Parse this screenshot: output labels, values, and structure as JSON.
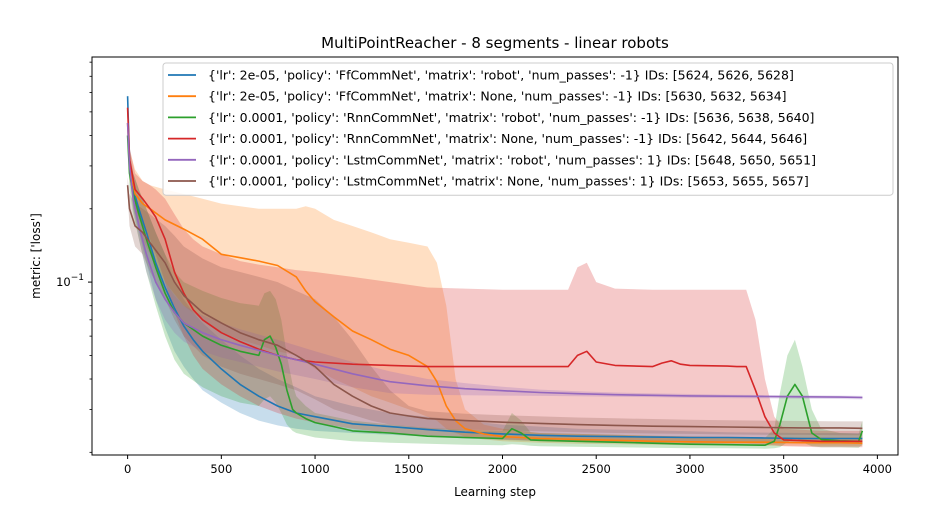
{
  "chart_data": {
    "type": "line",
    "title": "MultiPointReacher - 8 segments - linear robots",
    "xlabel": "Learning step",
    "ylabel": "metric: ['loss']",
    "yscale": "log",
    "xlim": [
      -190,
      4110
    ],
    "ylim": [
      0.0195,
      0.84
    ],
    "xticks": [
      0,
      500,
      1000,
      1500,
      2000,
      2500,
      3000,
      3500,
      4000
    ],
    "yticks": [
      {
        "value": 0.1,
        "label": "10^-1"
      }
    ],
    "grid": false,
    "legend_position": "top-right",
    "series": [
      {
        "name": "{'lr': 2e-05, 'policy': 'FfCommNet', 'matrix': 'robot', 'num_passes': -1}  IDs: [5624, 5626, 5628]",
        "color": "#1f77b4",
        "x": [
          0,
          10,
          30,
          60,
          100,
          150,
          200,
          250,
          300,
          350,
          400,
          500,
          600,
          700,
          800,
          900,
          1000,
          1200,
          1400,
          1600,
          1800,
          2000,
          2200,
          2400,
          2600,
          2800,
          3000,
          3200,
          3400,
          3600,
          3800,
          3920
        ],
        "y": [
          0.58,
          0.32,
          0.24,
          0.2,
          0.16,
          0.12,
          0.095,
          0.078,
          0.066,
          0.058,
          0.052,
          0.044,
          0.038,
          0.034,
          0.031,
          0.029,
          0.028,
          0.0262,
          0.0255,
          0.0248,
          0.0242,
          0.0238,
          0.0235,
          0.0233,
          0.0232,
          0.0231,
          0.023,
          0.023,
          0.0229,
          0.0228,
          0.0228,
          0.0228
        ],
        "upper": [
          0.6,
          0.36,
          0.28,
          0.24,
          0.2,
          0.16,
          0.13,
          0.1,
          0.085,
          0.075,
          0.068,
          0.058,
          0.05,
          0.044,
          0.04,
          0.037,
          0.034,
          0.031,
          0.029,
          0.028,
          0.027,
          0.026,
          0.0255,
          0.025,
          0.0248,
          0.0246,
          0.0244,
          0.0242,
          0.0241,
          0.024,
          0.024,
          0.024
        ],
        "lower": [
          0.55,
          0.28,
          0.2,
          0.16,
          0.12,
          0.085,
          0.065,
          0.052,
          0.045,
          0.04,
          0.036,
          0.032,
          0.029,
          0.027,
          0.0258,
          0.025,
          0.0245,
          0.024,
          0.0236,
          0.0232,
          0.0228,
          0.0225,
          0.0222,
          0.0221,
          0.022,
          0.022,
          0.0219,
          0.0219,
          0.0218,
          0.0218,
          0.0218,
          0.0218
        ]
      },
      {
        "name": "{'lr': 2e-05, 'policy': 'FfCommNet', 'matrix': None, 'num_passes': -1}  IDs: [5630, 5632, 5634]",
        "color": "#ff7f0e",
        "x": [
          0,
          10,
          40,
          80,
          120,
          200,
          300,
          400,
          500,
          600,
          700,
          800,
          900,
          950,
          1000,
          1100,
          1200,
          1300,
          1400,
          1500,
          1600,
          1650,
          1700,
          1750,
          1800,
          1900,
          2000,
          2200,
          2400,
          2600,
          2800,
          3000,
          3200,
          3400,
          3600,
          3800,
          3920
        ],
        "y": [
          0.45,
          0.3,
          0.23,
          0.21,
          0.2,
          0.18,
          0.165,
          0.15,
          0.13,
          0.126,
          0.122,
          0.117,
          0.105,
          0.092,
          0.083,
          0.072,
          0.063,
          0.058,
          0.053,
          0.05,
          0.045,
          0.039,
          0.031,
          0.027,
          0.025,
          0.0238,
          0.0232,
          0.0228,
          0.0226,
          0.0224,
          0.0222,
          0.0221,
          0.022,
          0.022,
          0.0219,
          0.0219,
          0.0218
        ],
        "upper": [
          0.5,
          0.35,
          0.29,
          0.26,
          0.25,
          0.24,
          0.23,
          0.22,
          0.21,
          0.205,
          0.2,
          0.2,
          0.2,
          0.205,
          0.2,
          0.18,
          0.17,
          0.16,
          0.15,
          0.145,
          0.14,
          0.12,
          0.08,
          0.04,
          0.03,
          0.026,
          0.025,
          0.024,
          0.0238,
          0.0236,
          0.0234,
          0.0233,
          0.0232,
          0.0231,
          0.023,
          0.023,
          0.023
        ],
        "lower": [
          0.4,
          0.26,
          0.19,
          0.15,
          0.13,
          0.1,
          0.08,
          0.07,
          0.062,
          0.058,
          0.055,
          0.052,
          0.05,
          0.047,
          0.044,
          0.04,
          0.037,
          0.034,
          0.032,
          0.03,
          0.028,
          0.027,
          0.025,
          0.024,
          0.0232,
          0.0226,
          0.0222,
          0.0219,
          0.0217,
          0.0216,
          0.0215,
          0.0214,
          0.0214,
          0.0213,
          0.0213,
          0.0213,
          0.0213
        ]
      },
      {
        "name": "{'lr': 0.0001, 'policy': 'RnnCommNet', 'matrix': 'robot', 'num_passes': -1}  IDs: [5636, 5638, 5640]",
        "color": "#2ca02c",
        "x": [
          0,
          10,
          30,
          60,
          100,
          150,
          200,
          250,
          300,
          400,
          500,
          600,
          700,
          730,
          760,
          790,
          820,
          850,
          880,
          900,
          950,
          1000,
          1100,
          1200,
          1400,
          1600,
          1800,
          2000,
          2050,
          2100,
          2150,
          2200,
          2400,
          2600,
          2800,
          3000,
          3200,
          3400,
          3450,
          3480,
          3520,
          3560,
          3600,
          3650,
          3700,
          3800,
          3900,
          3920
        ],
        "y": [
          0.4,
          0.28,
          0.23,
          0.19,
          0.15,
          0.115,
          0.09,
          0.075,
          0.068,
          0.06,
          0.055,
          0.052,
          0.05,
          0.058,
          0.06,
          0.054,
          0.046,
          0.036,
          0.03,
          0.029,
          0.0275,
          0.0265,
          0.0255,
          0.0245,
          0.024,
          0.0233,
          0.023,
          0.0228,
          0.025,
          0.024,
          0.0225,
          0.0224,
          0.0222,
          0.022,
          0.0218,
          0.0216,
          0.0215,
          0.0214,
          0.0222,
          0.026,
          0.034,
          0.038,
          0.034,
          0.024,
          0.0226,
          0.0223,
          0.0222,
          0.0245
        ],
        "upper": [
          0.45,
          0.33,
          0.28,
          0.24,
          0.2,
          0.16,
          0.13,
          0.11,
          0.1,
          0.092,
          0.086,
          0.082,
          0.08,
          0.09,
          0.092,
          0.085,
          0.07,
          0.05,
          0.038,
          0.034,
          0.031,
          0.029,
          0.028,
          0.027,
          0.026,
          0.0252,
          0.0248,
          0.0245,
          0.029,
          0.027,
          0.0242,
          0.024,
          0.0238,
          0.0236,
          0.0234,
          0.0232,
          0.023,
          0.0229,
          0.025,
          0.035,
          0.05,
          0.058,
          0.045,
          0.03,
          0.025,
          0.024,
          0.0238,
          0.027
        ],
        "lower": [
          0.36,
          0.24,
          0.19,
          0.15,
          0.11,
          0.08,
          0.06,
          0.048,
          0.042,
          0.037,
          0.034,
          0.032,
          0.031,
          0.033,
          0.034,
          0.032,
          0.029,
          0.026,
          0.0245,
          0.024,
          0.0235,
          0.023,
          0.0226,
          0.0222,
          0.0219,
          0.0217,
          0.0215,
          0.0214,
          0.0216,
          0.0215,
          0.0213,
          0.0212,
          0.0211,
          0.021,
          0.0209,
          0.0208,
          0.0208,
          0.0207,
          0.0208,
          0.021,
          0.022,
          0.023,
          0.022,
          0.0212,
          0.021,
          0.021,
          0.0209,
          0.0215
        ]
      },
      {
        "name": "{'lr': 0.0001, 'policy': 'RnnCommNet', 'matrix': None, 'num_passes': -1}  IDs: [5642, 5644, 5646]",
        "color": "#d62728",
        "x": [
          0,
          10,
          40,
          80,
          120,
          150,
          200,
          250,
          300,
          350,
          400,
          500,
          600,
          700,
          800,
          900,
          1000,
          1200,
          1400,
          1600,
          1800,
          2000,
          2200,
          2350,
          2400,
          2450,
          2500,
          2600,
          2800,
          2850,
          2900,
          2950,
          3000,
          3200,
          3250,
          3300,
          3350,
          3400,
          3450,
          3500,
          3700,
          3920
        ],
        "y": [
          0.52,
          0.32,
          0.24,
          0.22,
          0.2,
          0.185,
          0.15,
          0.11,
          0.09,
          0.077,
          0.07,
          0.062,
          0.057,
          0.053,
          0.05,
          0.048,
          0.047,
          0.046,
          0.0455,
          0.045,
          0.045,
          0.045,
          0.045,
          0.045,
          0.05,
          0.052,
          0.047,
          0.0455,
          0.045,
          0.0465,
          0.0475,
          0.046,
          0.0455,
          0.0452,
          0.045,
          0.045,
          0.036,
          0.028,
          0.024,
          0.0225,
          0.0222,
          0.0222
        ],
        "upper": [
          0.55,
          0.36,
          0.28,
          0.26,
          0.25,
          0.24,
          0.22,
          0.19,
          0.165,
          0.15,
          0.14,
          0.13,
          0.122,
          0.118,
          0.115,
          0.112,
          0.11,
          0.105,
          0.1,
          0.095,
          0.094,
          0.093,
          0.093,
          0.093,
          0.115,
          0.12,
          0.1,
          0.094,
          0.093,
          0.093,
          0.093,
          0.093,
          0.093,
          0.093,
          0.093,
          0.093,
          0.07,
          0.04,
          0.028,
          0.025,
          0.0245,
          0.0245
        ],
        "lower": [
          0.48,
          0.28,
          0.2,
          0.17,
          0.15,
          0.13,
          0.1,
          0.075,
          0.06,
          0.05,
          0.044,
          0.038,
          0.034,
          0.031,
          0.029,
          0.0275,
          0.0265,
          0.025,
          0.024,
          0.0235,
          0.023,
          0.0226,
          0.0223,
          0.0222,
          0.0221,
          0.022,
          0.022,
          0.0219,
          0.0218,
          0.0218,
          0.0218,
          0.0218,
          0.0217,
          0.0217,
          0.0217,
          0.0217,
          0.0216,
          0.0215,
          0.0214,
          0.0212,
          0.021,
          0.021
        ]
      },
      {
        "name": "{'lr': 0.0001, 'policy': 'LstmCommNet', 'matrix': 'robot', 'num_passes': 1}  IDs: [5648, 5650, 5651]",
        "color": "#9467bd",
        "x": [
          0,
          10,
          30,
          60,
          100,
          150,
          200,
          250,
          300,
          400,
          500,
          600,
          800,
          1000,
          1200,
          1400,
          1600,
          1800,
          2000,
          2200,
          2400,
          2600,
          2800,
          3000,
          3200,
          3400,
          3600,
          3800,
          3920
        ],
        "y": [
          0.45,
          0.3,
          0.22,
          0.17,
          0.13,
          0.1,
          0.085,
          0.075,
          0.068,
          0.062,
          0.058,
          0.055,
          0.05,
          0.046,
          0.042,
          0.039,
          0.0375,
          0.0365,
          0.0358,
          0.0352,
          0.0348,
          0.0345,
          0.0343,
          0.0341,
          0.034,
          0.0339,
          0.0338,
          0.0337,
          0.0336
        ],
        "upper": [
          0.47,
          0.32,
          0.24,
          0.19,
          0.15,
          0.115,
          0.1,
          0.088,
          0.08,
          0.073,
          0.068,
          0.064,
          0.058,
          0.052,
          0.047,
          0.043,
          0.04,
          0.0385,
          0.0372,
          0.0362,
          0.0356,
          0.0352,
          0.0349,
          0.0347,
          0.0345,
          0.0344,
          0.0343,
          0.0342,
          0.0341
        ],
        "lower": [
          0.43,
          0.28,
          0.2,
          0.15,
          0.11,
          0.085,
          0.07,
          0.062,
          0.057,
          0.052,
          0.049,
          0.047,
          0.043,
          0.04,
          0.037,
          0.035,
          0.0345,
          0.0343,
          0.0342,
          0.0341,
          0.034,
          0.0338,
          0.0337,
          0.0335,
          0.0334,
          0.0333,
          0.0332,
          0.0331,
          0.033
        ]
      },
      {
        "name": "{'lr': 0.0001, 'policy': 'LstmCommNet', 'matrix': None, 'num_passes': 1}  IDs: [5653, 5655, 5657]",
        "color": "#8c564b",
        "x": [
          0,
          10,
          40,
          80,
          120,
          200,
          250,
          300,
          400,
          500,
          600,
          700,
          800,
          900,
          1000,
          1100,
          1200,
          1300,
          1400,
          1500,
          1600,
          1800,
          2000,
          2200,
          2400,
          2600,
          2800,
          3000,
          3200,
          3400,
          3600,
          3800,
          3920
        ],
        "y": [
          0.25,
          0.2,
          0.17,
          0.16,
          0.145,
          0.12,
          0.1,
          0.088,
          0.075,
          0.068,
          0.062,
          0.058,
          0.055,
          0.05,
          0.045,
          0.038,
          0.034,
          0.031,
          0.029,
          0.0282,
          0.0275,
          0.027,
          0.0266,
          0.0263,
          0.026,
          0.0258,
          0.0256,
          0.0255,
          0.0254,
          0.0253,
          0.0252,
          0.0252,
          0.0251
        ],
        "upper": [
          0.27,
          0.23,
          0.21,
          0.2,
          0.19,
          0.17,
          0.155,
          0.14,
          0.125,
          0.115,
          0.11,
          0.105,
          0.1,
          0.092,
          0.085,
          0.072,
          0.058,
          0.045,
          0.036,
          0.031,
          0.0295,
          0.0288,
          0.0284,
          0.0281,
          0.0278,
          0.0276,
          0.0274,
          0.0272,
          0.0271,
          0.027,
          0.0269,
          0.0268,
          0.0268
        ],
        "lower": [
          0.23,
          0.17,
          0.14,
          0.13,
          0.11,
          0.085,
          0.07,
          0.06,
          0.05,
          0.045,
          0.042,
          0.04,
          0.038,
          0.036,
          0.033,
          0.03,
          0.0285,
          0.027,
          0.026,
          0.0255,
          0.025,
          0.0248,
          0.0246,
          0.0244,
          0.0242,
          0.024,
          0.0239,
          0.0238,
          0.0237,
          0.0236,
          0.0236,
          0.0235,
          0.0235
        ]
      }
    ]
  }
}
